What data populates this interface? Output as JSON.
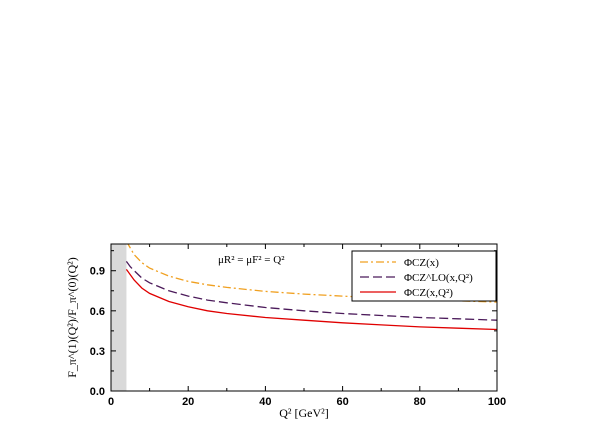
{
  "chart_data": {
    "type": "line",
    "title": "",
    "xlabel": "Q² [GeV²]",
    "ylabel": "F_π^(1)(Q²)/F_π^(0)(Q²)",
    "xlim": [
      0,
      100
    ],
    "ylim": [
      0,
      1.1
    ],
    "x_ticks": [
      0,
      20,
      40,
      60,
      80,
      100
    ],
    "x_tick_labels": [
      "0",
      "20",
      "40",
      "60",
      "80",
      "100"
    ],
    "y_ticks": [
      0.0,
      0.3,
      0.6,
      0.9
    ],
    "y_tick_labels": [
      "0.0",
      "0.3",
      "0.6",
      "0.9"
    ],
    "shaded_region": {
      "x": [
        0,
        4
      ],
      "color": "#d9d9d9"
    },
    "annotation": "μR² = μF² = Q²",
    "legend": {
      "placement": "top-right"
    },
    "series": [
      {
        "name": "ΦCZ(x)",
        "style": "dash-dot",
        "color": "#f0a020",
        "x": [
          4,
          5,
          6,
          8,
          10,
          15,
          20,
          25,
          30,
          40,
          50,
          60,
          70,
          80,
          90,
          100
        ],
        "y": [
          1.12,
          1.07,
          1.02,
          0.96,
          0.92,
          0.86,
          0.82,
          0.795,
          0.775,
          0.745,
          0.725,
          0.71,
          0.695,
          0.685,
          0.675,
          0.665
        ]
      },
      {
        "name": "ΦCZ^LO(x,Q²)",
        "style": "dashed",
        "color": "#4b1a5a",
        "x": [
          4,
          5,
          6,
          8,
          10,
          15,
          20,
          25,
          30,
          40,
          50,
          60,
          70,
          80,
          90,
          100
        ],
        "y": [
          0.97,
          0.93,
          0.9,
          0.845,
          0.81,
          0.75,
          0.71,
          0.68,
          0.66,
          0.625,
          0.6,
          0.58,
          0.565,
          0.55,
          0.54,
          0.53
        ]
      },
      {
        "name": "ΦCZ(x,Q²)",
        "style": "solid",
        "color": "#e00000",
        "x": [
          4,
          5,
          6,
          8,
          10,
          15,
          20,
          25,
          30,
          40,
          50,
          60,
          70,
          80,
          90,
          100
        ],
        "y": [
          0.91,
          0.87,
          0.83,
          0.77,
          0.73,
          0.67,
          0.63,
          0.6,
          0.58,
          0.55,
          0.53,
          0.51,
          0.495,
          0.48,
          0.47,
          0.46
        ]
      }
    ]
  }
}
